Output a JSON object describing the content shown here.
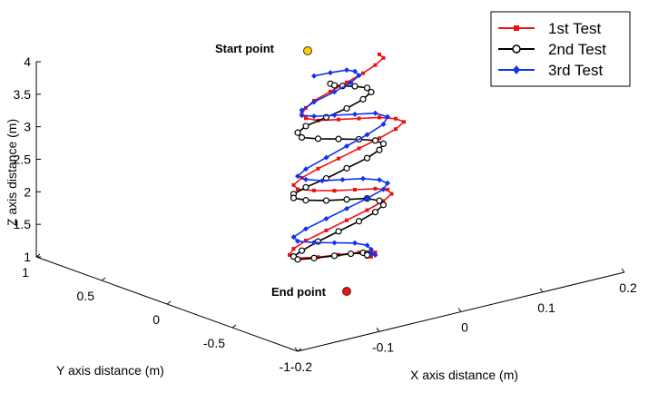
{
  "chart_data": {
    "type": "line3d",
    "title": "",
    "xlabel": "X axis distance (m)",
    "ylabel": "Y axis distance (m)",
    "zlabel": "Z axis distance (m)",
    "xlim": [
      -0.2,
      0.2
    ],
    "ylim": [
      -1,
      1
    ],
    "zlim": [
      1,
      4
    ],
    "x_ticks": [
      "-0.2",
      "-0.1",
      "0",
      "0.1",
      "0.2"
    ],
    "y_ticks": [
      "-1",
      "-0.5",
      "0",
      "0.5",
      "1"
    ],
    "z_ticks": [
      "1",
      "1.5",
      "2",
      "2.5",
      "3",
      "3.5",
      "4"
    ],
    "legend_position": "top-right",
    "annotations": [
      {
        "text": "Start point",
        "z": 3.95
      },
      {
        "text": "End point",
        "z": 1.0
      }
    ],
    "series": [
      {
        "name": "1st Test",
        "color": "#ee1111",
        "marker": "square",
        "x": [
          0.06,
          0.065,
          0.055,
          0.04,
          0.02,
          0.0,
          -0.02,
          -0.03,
          -0.035,
          -0.03,
          -0.015,
          0.01,
          0.035,
          0.06,
          0.08,
          0.09,
          0.08,
          0.06,
          0.035,
          0.01,
          -0.015,
          -0.035,
          -0.045,
          -0.04,
          -0.02,
          0.005,
          0.03,
          0.055,
          0.07,
          0.075,
          0.065,
          0.045,
          0.02,
          -0.005,
          -0.03,
          -0.045,
          -0.05,
          -0.04,
          -0.015,
          0.01,
          0.035,
          0.05,
          0.055,
          0.05,
          0.045,
          0.05
        ],
        "y": [
          0.0,
          0.0,
          0.0,
          0.0,
          0.0,
          0.0,
          0.0,
          0.0,
          0.0,
          0.0,
          0.0,
          0.0,
          0.0,
          0.0,
          0.0,
          0.0,
          0.0,
          0.0,
          0.0,
          0.0,
          0.0,
          0.0,
          0.0,
          0.0,
          0.0,
          0.0,
          0.0,
          0.0,
          0.0,
          0.0,
          0.0,
          0.0,
          0.0,
          0.0,
          0.0,
          0.0,
          0.0,
          0.0,
          0.0,
          0.0,
          0.0,
          0.0,
          0.0,
          0.0,
          0.0,
          0.0
        ],
        "z": [
          4.05,
          3.98,
          3.9,
          3.82,
          3.74,
          3.66,
          3.58,
          3.5,
          3.42,
          3.34,
          3.26,
          3.2,
          3.14,
          3.08,
          3.0,
          2.92,
          2.84,
          2.76,
          2.68,
          2.6,
          2.52,
          2.44,
          2.36,
          2.28,
          2.2,
          2.12,
          2.06,
          2.0,
          1.94,
          1.86,
          1.78,
          1.7,
          1.62,
          1.54,
          1.46,
          1.38,
          1.3,
          1.22,
          1.16,
          1.12,
          1.08,
          1.05,
          1.02,
          1.0,
          0.98,
          0.97
        ]
      },
      {
        "name": "2nd Test",
        "color": "#000000",
        "marker": "circle",
        "x": [
          0.0,
          0.005,
          0.015,
          0.03,
          0.045,
          0.05,
          0.04,
          0.02,
          -0.005,
          -0.03,
          -0.04,
          -0.035,
          -0.015,
          0.01,
          0.035,
          0.055,
          0.065,
          0.06,
          0.045,
          0.02,
          -0.005,
          -0.03,
          -0.045,
          -0.045,
          -0.03,
          -0.005,
          0.02,
          0.045,
          0.06,
          0.065,
          0.055,
          0.035,
          0.01,
          -0.015,
          -0.035,
          -0.045,
          -0.04,
          -0.02,
          0.005,
          0.025,
          0.04,
          0.045,
          0.045
        ],
        "y": [
          0.0,
          0.0,
          0.0,
          0.0,
          0.0,
          0.0,
          0.0,
          0.0,
          0.0,
          0.0,
          0.0,
          0.0,
          0.0,
          0.0,
          0.0,
          0.0,
          0.0,
          0.0,
          0.0,
          0.0,
          0.0,
          0.0,
          0.0,
          0.0,
          0.0,
          0.0,
          0.0,
          0.0,
          0.0,
          0.0,
          0.0,
          0.0,
          0.0,
          0.0,
          0.0,
          0.0,
          0.0,
          0.0,
          0.0,
          0.0,
          0.0,
          0.0,
          0.0
        ],
        "z": [
          3.78,
          3.74,
          3.7,
          3.65,
          3.58,
          3.5,
          3.42,
          3.34,
          3.28,
          3.22,
          3.15,
          3.06,
          2.98,
          2.9,
          2.82,
          2.74,
          2.66,
          2.58,
          2.5,
          2.42,
          2.34,
          2.28,
          2.22,
          2.16,
          2.08,
          2.0,
          1.94,
          1.88,
          1.8,
          1.72,
          1.64,
          1.56,
          1.48,
          1.4,
          1.32,
          1.26,
          1.2,
          1.16,
          1.12,
          1.09,
          1.06,
          1.03,
          1.01
        ]
      },
      {
        "name": "3rd Test",
        "color": "#1133ee",
        "marker": "diamond",
        "x": [
          -0.02,
          0.0,
          0.02,
          0.03,
          0.035,
          0.025,
          0.005,
          -0.02,
          -0.035,
          -0.035,
          -0.02,
          0.005,
          0.03,
          0.055,
          0.07,
          0.065,
          0.045,
          0.02,
          -0.005,
          -0.03,
          -0.04,
          -0.03,
          -0.01,
          0.015,
          0.04,
          0.06,
          0.07,
          0.065,
          0.045,
          0.02,
          -0.005,
          -0.03,
          -0.045,
          -0.04,
          -0.02,
          0.005,
          0.03,
          0.045,
          0.05,
          0.05,
          0.055
        ],
        "y": [
          0.0,
          0.0,
          0.0,
          0.0,
          0.0,
          0.0,
          0.0,
          0.0,
          0.0,
          0.0,
          0.0,
          0.0,
          0.0,
          0.0,
          0.0,
          0.0,
          0.0,
          0.0,
          0.0,
          0.0,
          0.0,
          0.0,
          0.0,
          0.0,
          0.0,
          0.0,
          0.0,
          0.0,
          0.0,
          0.0,
          0.0,
          0.0,
          0.0,
          0.0,
          0.0,
          0.0,
          0.0,
          0.0,
          0.0,
          0.0,
          0.0
        ],
        "z": [
          3.96,
          3.95,
          3.93,
          3.88,
          3.8,
          3.72,
          3.64,
          3.56,
          3.48,
          3.4,
          3.34,
          3.28,
          3.22,
          3.16,
          3.06,
          2.96,
          2.86,
          2.76,
          2.66,
          2.56,
          2.48,
          2.4,
          2.32,
          2.26,
          2.2,
          2.12,
          2.04,
          1.96,
          1.88,
          1.8,
          1.72,
          1.64,
          1.56,
          1.48,
          1.4,
          1.32,
          1.24,
          1.16,
          1.08,
          1.02,
          0.98
        ]
      }
    ]
  },
  "colors": {
    "start_marker": "#ffcc00",
    "end_marker": "#ee1111"
  }
}
